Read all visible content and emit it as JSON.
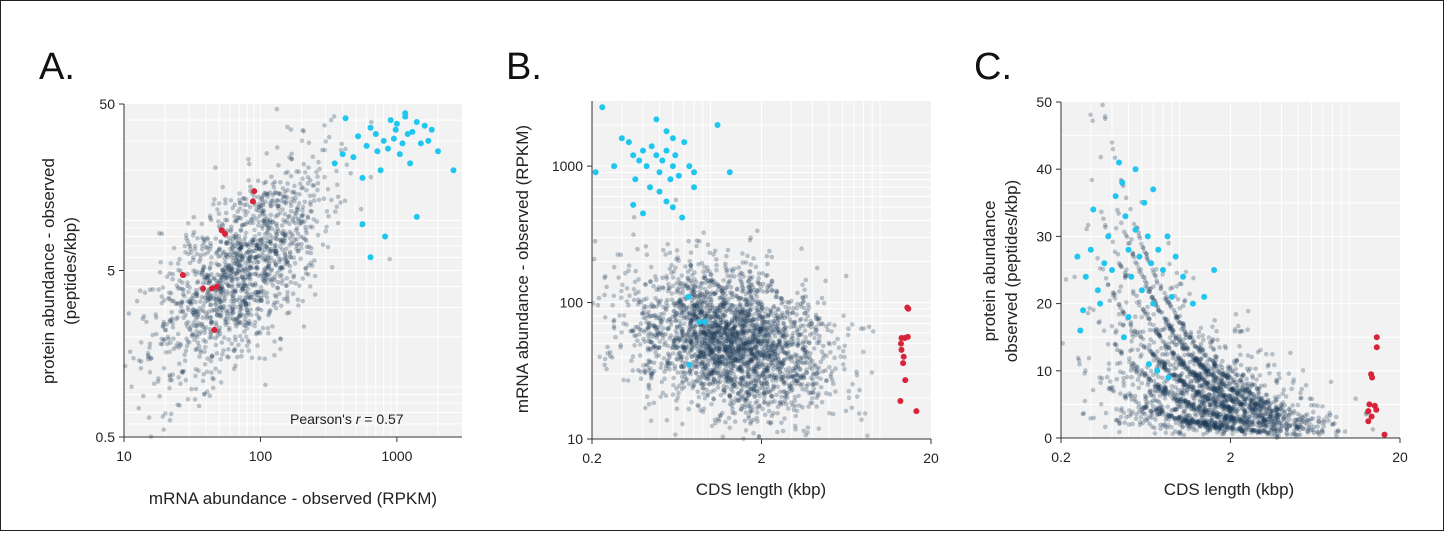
{
  "chart_data": [
    {
      "panel": "A.",
      "type": "scatter",
      "xlabel": "mRNA abundance - observed (RPKM)",
      "ylabel_lines": [
        "protein abundance  - observed",
        "(peptides/kbp)"
      ],
      "xscale": "log",
      "yscale": "log",
      "xlim": [
        10,
        3000
      ],
      "ylim": [
        0.5,
        50
      ],
      "xticks": [
        10,
        100,
        1000
      ],
      "xtick_labels": [
        "10",
        "100",
        "1000"
      ],
      "yticks": [
        0.5,
        5,
        50
      ],
      "ytick_labels": [
        "0.5",
        "5",
        "50"
      ],
      "annotation": {
        "prefix": "Pearson's ",
        "italic": "r",
        "suffix": " = 0.57"
      },
      "grid": true,
      "highlight_points": {
        "cyan": [
          [
            420,
            41
          ],
          [
            640,
            36
          ],
          [
            900,
            40
          ],
          [
            1000,
            38
          ],
          [
            1200,
            33
          ],
          [
            1400,
            39
          ],
          [
            800,
            30
          ],
          [
            1050,
            25
          ],
          [
            1500,
            29
          ],
          [
            1800,
            35
          ],
          [
            2000,
            26
          ],
          [
            2600,
            20
          ],
          [
            350,
            22
          ],
          [
            480,
            24
          ],
          [
            600,
            28
          ],
          [
            720,
            26
          ],
          [
            860,
            27
          ],
          [
            950,
            31
          ],
          [
            1100,
            29
          ],
          [
            1300,
            34
          ],
          [
            1600,
            37
          ],
          [
            760,
            20
          ],
          [
            1250,
            22
          ],
          [
            700,
            33
          ],
          [
            1150,
            42
          ],
          [
            520,
            32
          ],
          [
            980,
            35
          ],
          [
            560,
            18
          ],
          [
            1400,
            10.5
          ],
          [
            820,
            8
          ],
          [
            560,
            9.5
          ],
          [
            640,
            6
          ],
          [
            1150,
            44
          ],
          [
            400,
            25
          ],
          [
            1700,
            30
          ]
        ],
        "red": [
          [
            27,
            4.7
          ],
          [
            38,
            3.9
          ],
          [
            44,
            3.9
          ],
          [
            48,
            4.0
          ],
          [
            52,
            8.7
          ],
          [
            55,
            8.3
          ],
          [
            90,
            15
          ],
          [
            88,
            13
          ],
          [
            46,
            2.2
          ]
        ]
      },
      "background_cloud": {
        "color": "#1d3a57",
        "center_log": [
          1.85,
          0.78
        ],
        "count": 1400
      }
    },
    {
      "panel": "B.",
      "type": "scatter",
      "xlabel": "CDS length (kbp)",
      "ylabel_lines": [
        "mRNA abundance - observed (RPKM)"
      ],
      "xscale": "log",
      "yscale": "log",
      "xlim": [
        0.2,
        20
      ],
      "ylim": [
        10,
        3000
      ],
      "xticks": [
        0.2,
        2,
        20
      ],
      "xtick_labels": [
        "0.2",
        "2",
        "20"
      ],
      "yticks": [
        10,
        100,
        1000
      ],
      "ytick_labels": [
        "10",
        "100",
        "1000"
      ],
      "grid": true,
      "highlight_points": {
        "cyan": [
          [
            0.23,
            2700
          ],
          [
            0.21,
            900
          ],
          [
            0.3,
            1600
          ],
          [
            0.33,
            1500
          ],
          [
            0.35,
            1200
          ],
          [
            0.38,
            1100
          ],
          [
            0.4,
            1300
          ],
          [
            0.42,
            1000
          ],
          [
            0.45,
            1400
          ],
          [
            0.48,
            1200
          ],
          [
            0.5,
            900
          ],
          [
            0.52,
            1100
          ],
          [
            0.55,
            1300
          ],
          [
            0.58,
            800
          ],
          [
            0.6,
            1000
          ],
          [
            0.62,
            1200
          ],
          [
            0.65,
            850
          ],
          [
            0.7,
            1500
          ],
          [
            0.75,
            1000
          ],
          [
            0.8,
            900
          ],
          [
            0.36,
            800
          ],
          [
            0.44,
            700
          ],
          [
            0.5,
            650
          ],
          [
            0.55,
            550
          ],
          [
            0.6,
            500
          ],
          [
            0.4,
            450
          ],
          [
            0.68,
            420
          ],
          [
            0.48,
            2200
          ],
          [
            1.1,
            2000
          ],
          [
            1.3,
            900
          ],
          [
            0.55,
            1800
          ],
          [
            0.6,
            1600
          ],
          [
            0.35,
            520
          ],
          [
            0.74,
            110
          ],
          [
            0.86,
            72
          ],
          [
            0.93,
            72
          ],
          [
            0.75,
            35
          ],
          [
            0.8,
            700
          ],
          [
            0.27,
            1000
          ]
        ],
        "red": [
          [
            14.5,
            92
          ],
          [
            14.7,
            90
          ],
          [
            14.0,
            55
          ],
          [
            14.6,
            56
          ],
          [
            13.3,
            50
          ],
          [
            13.4,
            45
          ],
          [
            13.8,
            40
          ],
          [
            13.7,
            36
          ],
          [
            14.1,
            27
          ],
          [
            13.2,
            19
          ],
          [
            16.4,
            16
          ],
          [
            13.4,
            55
          ]
        ]
      },
      "background_cloud": {
        "color": "#1d3a57",
        "center_log": [
          0.2,
          1.65
        ],
        "count": 2600
      }
    },
    {
      "panel": "C.",
      "type": "scatter",
      "xlabel": "CDS length (kbp)",
      "ylabel_lines": [
        "protein abundance",
        "observed (peptides/kbp)"
      ],
      "xscale": "log",
      "yscale": "linear",
      "xlim": [
        0.2,
        20
      ],
      "ylim": [
        0,
        50
      ],
      "xticks": [
        0.2,
        2,
        20
      ],
      "xtick_labels": [
        "0.2",
        "2",
        "20"
      ],
      "yticks": [
        0,
        10,
        20,
        30,
        40,
        50
      ],
      "ytick_labels": [
        "0",
        "10",
        "20",
        "30",
        "40",
        "50"
      ],
      "grid": true,
      "highlight_points": {
        "cyan": [
          [
            0.26,
            16
          ],
          [
            0.25,
            27
          ],
          [
            0.27,
            19
          ],
          [
            0.28,
            24
          ],
          [
            0.3,
            28
          ],
          [
            0.31,
            34
          ],
          [
            0.33,
            22
          ],
          [
            0.34,
            20
          ],
          [
            0.36,
            26
          ],
          [
            0.38,
            30
          ],
          [
            0.4,
            25
          ],
          [
            0.42,
            36
          ],
          [
            0.44,
            41
          ],
          [
            0.46,
            38
          ],
          [
            0.48,
            33
          ],
          [
            0.5,
            28
          ],
          [
            0.52,
            24
          ],
          [
            0.55,
            31
          ],
          [
            0.58,
            27
          ],
          [
            0.6,
            22
          ],
          [
            0.62,
            35
          ],
          [
            0.65,
            30
          ],
          [
            0.68,
            26
          ],
          [
            0.7,
            20
          ],
          [
            0.75,
            28
          ],
          [
            0.8,
            25
          ],
          [
            0.85,
            30
          ],
          [
            0.9,
            21
          ],
          [
            0.95,
            27
          ],
          [
            1.05,
            24
          ],
          [
            1.2,
            20
          ],
          [
            1.4,
            21
          ],
          [
            1.6,
            25
          ],
          [
            0.55,
            40
          ],
          [
            0.7,
            37
          ],
          [
            0.5,
            18
          ],
          [
            0.66,
            11
          ],
          [
            0.74,
            10
          ],
          [
            0.86,
            9
          ],
          [
            0.47,
            15
          ]
        ],
        "red": [
          [
            14.6,
            15
          ],
          [
            14.6,
            13.5
          ],
          [
            13.5,
            9.5
          ],
          [
            13.7,
            9
          ],
          [
            13.2,
            5
          ],
          [
            14.2,
            4.8
          ],
          [
            13.0,
            4
          ],
          [
            14.5,
            4.2
          ],
          [
            13.6,
            3.2
          ],
          [
            13.0,
            2.5
          ],
          [
            16.2,
            0.5
          ]
        ]
      },
      "background_cloud": {
        "color": "#1d3a57",
        "count": 2200
      }
    }
  ]
}
